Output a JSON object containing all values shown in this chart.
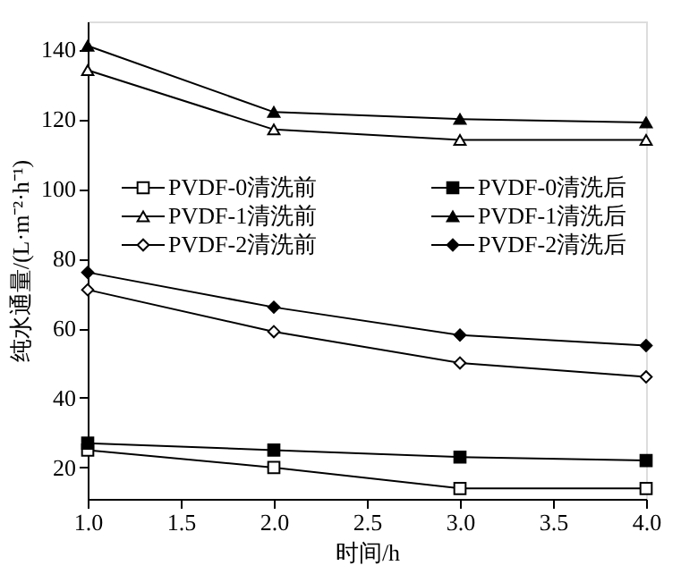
{
  "chart_data": {
    "type": "line",
    "xlabel": "时间/h",
    "ylabel": "纯水通量/(L·m⁻²·h⁻¹)",
    "x": [
      1,
      2,
      3,
      4
    ],
    "series": [
      {
        "name": "PVDF-0清洗前",
        "color": "#000000",
        "marker": "square",
        "values": [
          25,
          20,
          14,
          14
        ]
      },
      {
        "name": "PVDF-0清洗后",
        "color": "#000000",
        "marker": "square",
        "values": [
          27,
          25,
          23,
          22
        ]
      },
      {
        "name": "PVDF-1清洗前",
        "color": "#000000",
        "marker": "triangle",
        "values": [
          134,
          117,
          114,
          114
        ]
      },
      {
        "name": "PVDF-1清洗后",
        "color": "#000000",
        "marker": "triangle",
        "values": [
          141,
          122,
          120,
          119
        ]
      },
      {
        "name": "PVDF-2清洗前",
        "color": "#000000",
        "marker": "diamond",
        "values": [
          71,
          59,
          50,
          46
        ]
      },
      {
        "name": "PVDF-2清洗后",
        "color": "#000000",
        "marker": "diamond",
        "values": [
          76,
          66,
          58,
          55
        ]
      }
    ],
    "xlim": [
      1,
      4
    ],
    "ylim": [
      11,
      148
    ],
    "xticks": [
      {
        "value": 1,
        "label": "1.0"
      },
      {
        "value": 1.5,
        "label": "1.5"
      },
      {
        "value": 2,
        "label": "2.0"
      },
      {
        "value": 2.5,
        "label": "2.5"
      },
      {
        "value": 3,
        "label": "3.0"
      },
      {
        "value": 3.5,
        "label": "3.5"
      },
      {
        "value": 4,
        "label": "4.0"
      }
    ],
    "yticks": [
      20,
      40,
      60,
      80,
      100,
      120,
      140
    ],
    "legend": "top",
    "grid": false,
    "line_style": "solid"
  }
}
